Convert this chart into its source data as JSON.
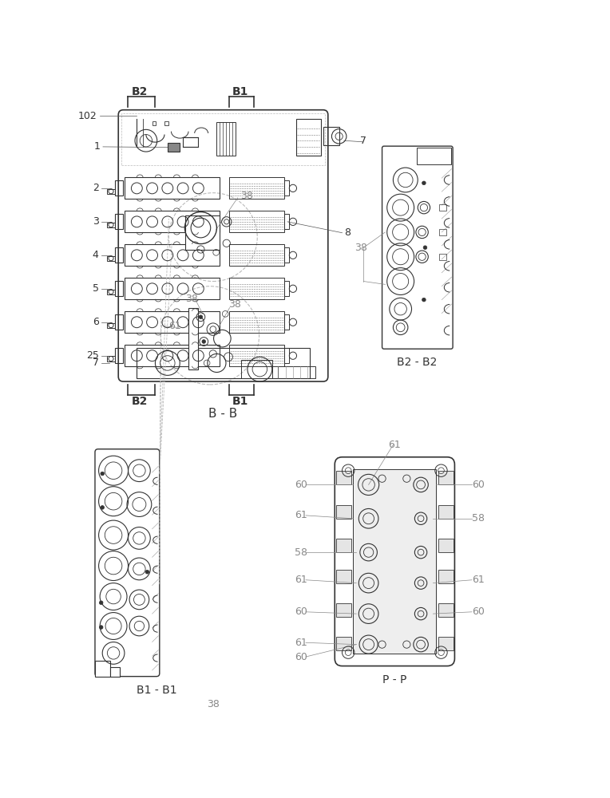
{
  "bg_color": "#ffffff",
  "lc": "#333333",
  "lc_gray": "#aaaaaa",
  "lc_label": "#888888",
  "lw": 0.7,
  "views": {
    "BB_label": "B - B",
    "B2B2_label": "B2 - B2",
    "B1B1_label": "B1 - B1",
    "PP_label": "P - P"
  }
}
